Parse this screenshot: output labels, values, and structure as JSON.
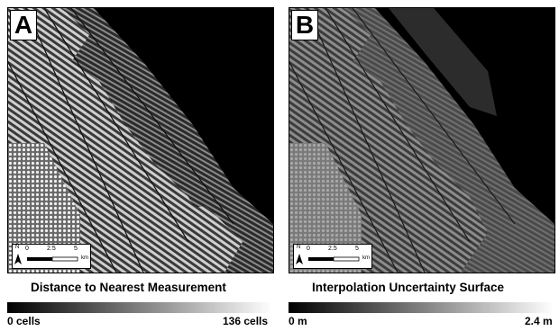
{
  "panels": [
    {
      "letter": "A",
      "legend_title": "Distance to Nearest Measurement",
      "min_label": "0 cells",
      "max_label": "136 cells"
    },
    {
      "letter": "B",
      "legend_title": "Interpolation Uncertainty Surface",
      "min_label": "0 m",
      "max_label": "2.4 m"
    }
  ],
  "scalebar": {
    "north": "N",
    "ticks": [
      "0",
      "2.5",
      "5"
    ],
    "unit": "km"
  },
  "colors": {
    "background": "#ffffff",
    "map_dark": "#000000",
    "gradient_low": "#000000",
    "gradient_high": "#ffffff"
  }
}
